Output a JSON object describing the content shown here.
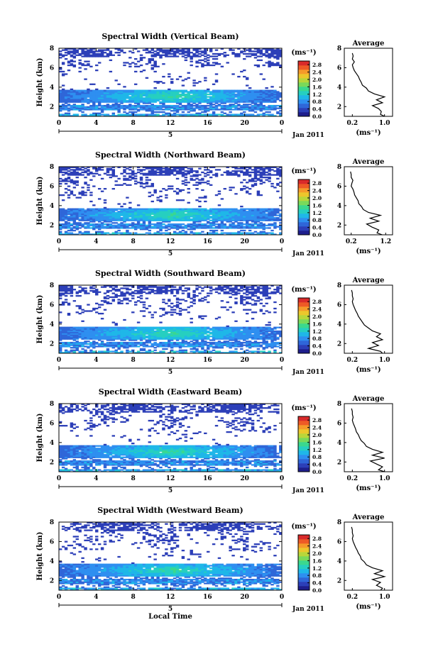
{
  "figure": {
    "xlabel": "Local Time",
    "colormap": [
      "#1e1e8c",
      "#2c3fb8",
      "#2f66d8",
      "#2e8ff0",
      "#1fb7e8",
      "#26cfc0",
      "#3bd88e",
      "#7ad95a",
      "#b9d63a",
      "#ecc72c",
      "#f59a2a",
      "#ee5a26",
      "#d92a2a"
    ]
  },
  "chart_data": [
    {
      "type": "heatmap",
      "title": "Spectral Width (Vertical Beam)",
      "ylabel": "Height (km)",
      "ylim": [
        1,
        8
      ],
      "yticks": [
        "2",
        "4",
        "6",
        "8"
      ],
      "xlim": [
        0,
        24
      ],
      "xticks": [
        "0",
        "4",
        "8",
        "12",
        "16",
        "20",
        "0"
      ],
      "day_label": "5",
      "date_label": "Jan 2011",
      "colorbar": {
        "unit": "(ms⁻¹)",
        "ticks": [
          "0.0",
          "0.4",
          "0.8",
          "1.2",
          "1.6",
          "2.0",
          "2.4",
          "2.8"
        ],
        "range": [
          0,
          3.0
        ]
      },
      "average": {
        "title": "Average",
        "xlabel": "(ms⁻¹)",
        "xticks": [
          "0.2",
          "1.0"
        ],
        "xlim": [
          0,
          1.2
        ],
        "yticks": [
          "2",
          "4",
          "6",
          "8"
        ],
        "ylim": [
          1,
          8
        ],
        "profile_y": [
          1.0,
          1.2,
          1.5,
          1.8,
          2.1,
          2.4,
          2.7,
          3.0,
          3.3,
          3.6,
          3.9,
          4.2,
          4.5,
          4.8,
          5.1,
          5.4,
          5.7,
          6.0,
          6.3,
          6.6,
          6.9,
          7.2,
          7.5
        ],
        "profile_x": [
          1.0,
          0.9,
          0.92,
          0.85,
          0.7,
          0.95,
          0.8,
          1.0,
          0.75,
          0.6,
          0.55,
          0.45,
          0.42,
          0.38,
          0.35,
          0.3,
          0.25,
          0.22,
          0.2,
          0.25,
          0.2,
          0.22,
          0.2
        ]
      }
    },
    {
      "type": "heatmap",
      "title": "Spectral Width (Northward Beam)",
      "ylabel": "Height (km)",
      "ylim": [
        1,
        8
      ],
      "yticks": [
        "2",
        "4",
        "6",
        "8"
      ],
      "xlim": [
        0,
        24
      ],
      "xticks": [
        "0",
        "4",
        "8",
        "12",
        "16",
        "20",
        "0"
      ],
      "day_label": "5",
      "date_label": "Jan 2011",
      "colorbar": {
        "unit": "(ms⁻¹)",
        "ticks": [
          "0.0",
          "0.4",
          "0.8",
          "1.2",
          "1.6",
          "2.0",
          "2.4",
          "2.8"
        ],
        "range": [
          0,
          3.0
        ]
      },
      "average": {
        "title": "Average",
        "xlabel": "(ms⁻¹)",
        "xticks": [
          "0.2",
          "1.2"
        ],
        "xlim": [
          0,
          1.4
        ],
        "yticks": [
          "2",
          "4",
          "6",
          "8"
        ],
        "ylim": [
          1,
          8
        ],
        "profile_y": [
          1.0,
          1.2,
          1.5,
          1.8,
          2.1,
          2.4,
          2.7,
          3.0,
          3.3,
          3.6,
          3.9,
          4.2,
          4.5,
          4.8,
          5.1,
          5.4,
          5.7,
          6.0,
          6.3,
          6.6,
          6.9,
          7.2,
          7.5
        ],
        "profile_x": [
          1.1,
          0.95,
          1.0,
          0.8,
          0.65,
          1.0,
          0.75,
          1.05,
          0.7,
          0.55,
          0.5,
          0.42,
          0.4,
          0.35,
          0.3,
          0.28,
          0.25,
          0.2,
          0.22,
          0.25,
          0.2,
          0.2,
          0.18
        ]
      }
    },
    {
      "type": "heatmap",
      "title": "Spectral Width (Southward Beam)",
      "ylabel": "Height (km)",
      "ylim": [
        1,
        8
      ],
      "yticks": [
        "2",
        "4",
        "6",
        "8"
      ],
      "xlim": [
        0,
        24
      ],
      "xticks": [
        "0",
        "4",
        "8",
        "12",
        "16",
        "20",
        "0"
      ],
      "day_label": "5",
      "date_label": "Jan 2011",
      "colorbar": {
        "unit": "(ms⁻¹)",
        "ticks": [
          "0.0",
          "0.4",
          "0.8",
          "1.2",
          "1.6",
          "2.0",
          "2.4",
          "2.8"
        ],
        "range": [
          0,
          3.0
        ]
      },
      "average": {
        "title": "Average",
        "xlabel": "(ms⁻¹)",
        "xticks": [
          "0.2",
          "1.0"
        ],
        "xlim": [
          0,
          1.2
        ],
        "yticks": [
          "2",
          "4",
          "6",
          "8"
        ],
        "ylim": [
          1,
          8
        ],
        "profile_y": [
          1.0,
          1.2,
          1.5,
          1.8,
          2.1,
          2.4,
          2.7,
          3.0,
          3.3,
          3.6,
          3.9,
          4.2,
          4.5,
          4.8,
          5.1,
          5.4,
          5.7,
          6.0,
          6.3,
          6.6,
          6.9,
          7.2,
          7.5
        ],
        "profile_x": [
          0.95,
          0.9,
          0.6,
          0.85,
          0.7,
          0.95,
          0.8,
          0.9,
          0.7,
          0.6,
          0.5,
          0.45,
          0.4,
          0.35,
          0.32,
          0.28,
          0.25,
          0.22,
          0.2,
          0.22,
          0.2,
          0.2,
          0.18
        ]
      }
    },
    {
      "type": "heatmap",
      "title": "Spectral Width (Eastward Beam)",
      "ylabel": "Height (km)",
      "ylim": [
        1,
        8
      ],
      "yticks": [
        "2",
        "4",
        "6",
        "8"
      ],
      "xlim": [
        0,
        24
      ],
      "xticks": [
        "0",
        "4",
        "8",
        "12",
        "16",
        "20",
        "0"
      ],
      "day_label": "5",
      "date_label": "Jan 2011",
      "colorbar": {
        "unit": "(ms⁻¹)",
        "ticks": [
          "0.0",
          "0.4",
          "0.8",
          "1.2",
          "1.6",
          "2.0",
          "2.4",
          "2.8"
        ],
        "range": [
          0,
          3.0
        ]
      },
      "average": {
        "title": "Average",
        "xlabel": "(ms⁻¹)",
        "xticks": [
          "0.2",
          "1.0"
        ],
        "xlim": [
          0,
          1.2
        ],
        "yticks": [
          "2",
          "4",
          "6",
          "8"
        ],
        "ylim": [
          1,
          8
        ],
        "profile_y": [
          1.0,
          1.2,
          1.5,
          1.8,
          2.1,
          2.4,
          2.7,
          3.0,
          3.3,
          3.6,
          3.9,
          4.2,
          4.5,
          4.8,
          5.1,
          5.4,
          5.7,
          6.0,
          6.3,
          6.6,
          6.9,
          7.2,
          7.5
        ],
        "profile_x": [
          1.0,
          0.85,
          0.95,
          0.8,
          0.65,
          1.0,
          0.7,
          0.95,
          0.7,
          0.55,
          0.5,
          0.42,
          0.38,
          0.35,
          0.3,
          0.28,
          0.25,
          0.22,
          0.2,
          0.22,
          0.2,
          0.2,
          0.18
        ]
      }
    },
    {
      "type": "heatmap",
      "title": "Spectral Width (Westward Beam)",
      "ylabel": "Height (km)",
      "ylim": [
        1,
        8
      ],
      "yticks": [
        "2",
        "4",
        "6",
        "8"
      ],
      "xlim": [
        0,
        24
      ],
      "xticks": [
        "0",
        "4",
        "8",
        "12",
        "16",
        "20",
        "0"
      ],
      "day_label": "5",
      "date_label": "Jan 2011",
      "colorbar": {
        "unit": "(ms⁻¹)",
        "ticks": [
          "0.0",
          "0.4",
          "0.8",
          "1.2",
          "1.6",
          "2.0",
          "2.4",
          "2.8"
        ],
        "range": [
          0,
          3.0
        ]
      },
      "average": {
        "title": "Average",
        "xlabel": "(ms⁻¹)",
        "xticks": [
          "0.2",
          "1.0"
        ],
        "xlim": [
          0,
          1.2
        ],
        "yticks": [
          "2",
          "4",
          "6",
          "8"
        ],
        "ylim": [
          1,
          8
        ],
        "profile_y": [
          1.0,
          1.2,
          1.5,
          1.8,
          2.1,
          2.4,
          2.7,
          3.0,
          3.3,
          3.6,
          3.9,
          4.2,
          4.5,
          4.8,
          5.1,
          5.4,
          5.7,
          6.0,
          6.3,
          6.6,
          6.9,
          7.2,
          7.5
        ],
        "profile_x": [
          0.9,
          0.95,
          0.8,
          0.9,
          0.7,
          1.0,
          0.75,
          0.95,
          0.7,
          0.55,
          0.5,
          0.42,
          0.4,
          0.35,
          0.32,
          0.28,
          0.25,
          0.22,
          0.2,
          0.22,
          0.2,
          0.2,
          0.18
        ]
      }
    }
  ]
}
